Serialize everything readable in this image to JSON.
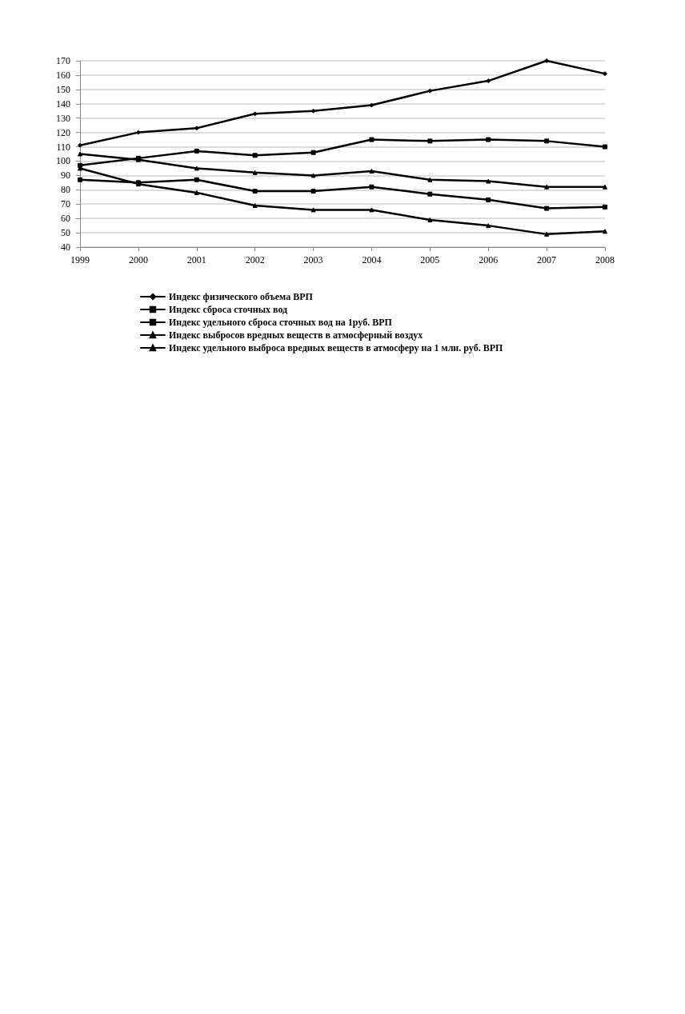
{
  "chart_data": {
    "type": "line",
    "categories": [
      "1999",
      "2000",
      "2001",
      "2002",
      "2003",
      "2004",
      "2005",
      "2006",
      "2007",
      "2008"
    ],
    "series": [
      {
        "name": "Индекс физического объема ВРП",
        "color": "#000000",
        "marker": "diamond",
        "values": [
          111,
          120,
          123,
          133,
          135,
          139,
          149,
          156,
          170,
          161
        ]
      },
      {
        "name": "Индекс сброса сточных вод",
        "color": "#000000",
        "marker": "square",
        "values": [
          97,
          102,
          107,
          104,
          106,
          115,
          114,
          115,
          114,
          110
        ]
      },
      {
        "name": "Индекс удельного сброса сточных вод на 1руб. ВРП",
        "color": "#000000",
        "marker": "square",
        "values": [
          87,
          85,
          87,
          79,
          79,
          82,
          77,
          73,
          67,
          68
        ]
      },
      {
        "name": "Индекс выбросов вредных веществ в атмосферный воздух",
        "color": "#000000",
        "marker": "triangle",
        "values": [
          105,
          101,
          95,
          92,
          90,
          93,
          87,
          86,
          82,
          82
        ]
      },
      {
        "name": "Индекс удельного выброса вредных веществ в атмосферу на 1 млн. руб. ВРП",
        "color": "#000000",
        "marker": "triangle",
        "values": [
          95,
          84,
          78,
          69,
          66,
          66,
          59,
          55,
          49,
          51
        ]
      }
    ],
    "ylim": [
      40,
      170
    ],
    "yticks": [
      40,
      50,
      60,
      70,
      80,
      90,
      100,
      110,
      120,
      130,
      140,
      150,
      160,
      170
    ],
    "grid": "y",
    "legend": "bottom"
  }
}
